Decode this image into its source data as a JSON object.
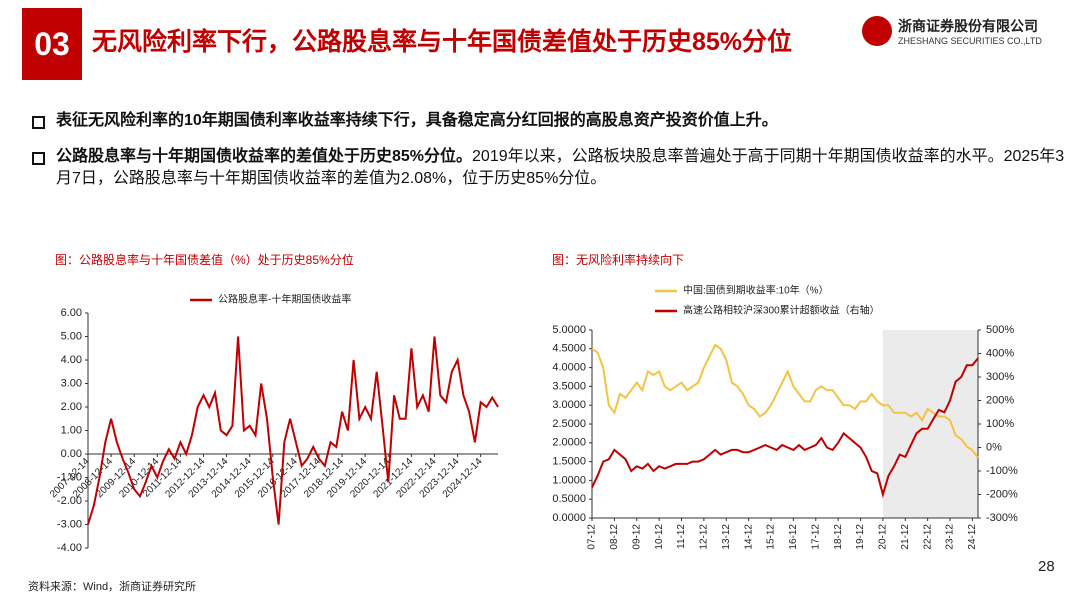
{
  "header": {
    "number": "03",
    "title": "无风险利率下行，公路股息率与十年国债差值处于历史85%分位"
  },
  "logo": {
    "name_cn": "浙商证券股份有限公司",
    "name_en": "ZHESHANG SECURITIES CO.,LTD"
  },
  "bullets": [
    {
      "bold": "表征无风险利率的10年期国债利率收益率持续下行，具备稳定高分红回报的高股息资产投资价值上升。"
    },
    {
      "bold": "公路股息率与十年期国债收益率的差值处于历史85%分位。",
      "text": "2019年以来，公路板块股息率普遍处于高于同期十年期国债收益率的水平。2025年3月7日，公路股息率与十年期国债收益率的差值为2.08%，位于历史85%分位。"
    }
  ],
  "chart_data": [
    {
      "type": "line",
      "title": "图：公路股息率与十年国债差值（%）处于历史85%分位",
      "legend": "top",
      "categories": [
        "2007-12-14",
        null,
        null,
        null,
        "2008-12-14",
        null,
        null,
        null,
        "2009-12-14",
        null,
        null,
        null,
        "2010-12-14",
        null,
        null,
        null,
        "2011-12-14",
        null,
        null,
        null,
        "2012-12-14",
        null,
        null,
        null,
        "2013-12-14",
        null,
        null,
        null,
        "2014-12-14",
        null,
        null,
        null,
        "2015-12-14",
        null,
        null,
        null,
        "2016-12-14",
        null,
        null,
        null,
        "2017-12-14",
        null,
        null,
        null,
        "2018-12-14",
        null,
        null,
        null,
        "2019-12-14",
        null,
        null,
        null,
        "2020-12-14",
        null,
        null,
        null,
        "2021-12-14",
        null,
        null,
        null,
        "2022-12-14",
        null,
        null,
        null,
        "2023-12-14",
        null,
        null,
        null,
        "2024-12-14",
        null,
        null,
        null
      ],
      "series": [
        {
          "name": "公路股息率-十年期国债收益率",
          "color": "#c00000",
          "values": [
            -3.0,
            -2.2,
            -1.0,
            0.5,
            1.5,
            0.5,
            -0.2,
            -0.8,
            -1.5,
            -1.8,
            -1.2,
            -0.5,
            -1.0,
            -0.3,
            0.2,
            -0.2,
            0.5,
            0.0,
            0.8,
            2.0,
            2.5,
            2.0,
            2.6,
            1.0,
            0.8,
            1.2,
            5.0,
            1.0,
            1.2,
            0.8,
            3.0,
            1.5,
            -1.0,
            -3.0,
            0.5,
            1.5,
            0.5,
            -0.5,
            -0.2,
            0.3,
            -0.2,
            -0.5,
            0.5,
            0.3,
            1.8,
            1.0,
            4.0,
            1.5,
            2.0,
            1.5,
            3.5,
            1.2,
            -1.2,
            2.5,
            1.5,
            1.5,
            4.5,
            2.0,
            2.5,
            1.8,
            5.0,
            2.5,
            2.2,
            3.5,
            4.0,
            2.5,
            1.8,
            0.5,
            2.2,
            2.0,
            2.4,
            2.0
          ]
        }
      ],
      "ylim": [
        -4,
        6
      ],
      "yticks": [
        {
          "value": 6,
          "label": "6.00"
        },
        {
          "value": 5,
          "label": "5.00"
        },
        {
          "value": 4,
          "label": "4.00"
        },
        {
          "value": 3,
          "label": "3.00"
        },
        {
          "value": 2,
          "label": "2.00"
        },
        {
          "value": 1,
          "label": "1.00"
        },
        {
          "value": 0,
          "label": "0.00"
        },
        {
          "value": -1,
          "label": "-1.00"
        },
        {
          "value": -2,
          "label": "-2.00"
        },
        {
          "value": -3,
          "label": "-3.00"
        },
        {
          "value": -4,
          "label": "-4.00"
        }
      ]
    },
    {
      "type": "line",
      "title": "图：无风险利率持续向下",
      "legend": "top",
      "shade_from": "20-12",
      "shade_color": "#ebebeb",
      "categories": [
        "07-12",
        null,
        null,
        null,
        "08-12",
        null,
        null,
        null,
        "09-12",
        null,
        null,
        null,
        "10-12",
        null,
        null,
        null,
        "11-12",
        null,
        null,
        null,
        "12-12",
        null,
        null,
        null,
        "13-12",
        null,
        null,
        null,
        "14-12",
        null,
        null,
        null,
        "15-12",
        null,
        null,
        null,
        "16-12",
        null,
        null,
        null,
        "17-12",
        null,
        null,
        null,
        "18-12",
        null,
        null,
        null,
        "19-12",
        null,
        null,
        null,
        "20-12",
        null,
        null,
        null,
        "21-12",
        null,
        null,
        null,
        "22-12",
        null,
        null,
        null,
        "23-12",
        null,
        null,
        null,
        "24-12",
        null
      ],
      "series": [
        {
          "name": "中国:国债到期收益率:10年（%）",
          "color": "#f5c342",
          "values": [
            4.5,
            4.4,
            4.0,
            3.0,
            2.8,
            3.3,
            3.2,
            3.4,
            3.6,
            3.4,
            3.9,
            3.8,
            3.9,
            3.5,
            3.4,
            3.5,
            3.6,
            3.4,
            3.5,
            3.6,
            4.0,
            4.3,
            4.6,
            4.5,
            4.2,
            3.6,
            3.5,
            3.3,
            3.0,
            2.9,
            2.7,
            2.8,
            3.0,
            3.3,
            3.6,
            3.9,
            3.5,
            3.3,
            3.1,
            3.1,
            3.4,
            3.5,
            3.4,
            3.4,
            3.2,
            3.0,
            3.0,
            2.9,
            3.1,
            3.1,
            3.3,
            3.1,
            3.0,
            3.0,
            2.8,
            2.8,
            2.8,
            2.7,
            2.8,
            2.6,
            2.9,
            2.8,
            2.7,
            2.7,
            2.6,
            2.2,
            2.1,
            1.9,
            1.8,
            1.6
          ]
        },
        {
          "name": "高速公路相较沪深300累计超额收益（右轴）",
          "color": "#c00000",
          "axis": "y2",
          "values": [
            -170,
            -120,
            -60,
            -50,
            -10,
            -30,
            -50,
            -100,
            -80,
            -90,
            -70,
            -100,
            -80,
            -90,
            -80,
            -70,
            -70,
            -70,
            -60,
            -60,
            -50,
            -30,
            -10,
            -30,
            -20,
            -10,
            -10,
            -20,
            -20,
            -10,
            0,
            10,
            0,
            -10,
            10,
            0,
            -10,
            10,
            -10,
            0,
            10,
            40,
            0,
            -10,
            20,
            60,
            40,
            20,
            0,
            -40,
            -100,
            -110,
            -200,
            -120,
            -80,
            -30,
            -40,
            10,
            60,
            80,
            80,
            120,
            160,
            150,
            200,
            280,
            300,
            350,
            350,
            380
          ]
        }
      ],
      "ylim": [
        0,
        5
      ],
      "yticks": [
        {
          "value": 0,
          "label": "0.0000"
        },
        {
          "value": 0.5,
          "label": "0.5000"
        },
        {
          "value": 1,
          "label": "1.0000"
        },
        {
          "value": 1.5,
          "label": "1.5000"
        },
        {
          "value": 2,
          "label": "2.0000"
        },
        {
          "value": 2.5,
          "label": "2.5000"
        },
        {
          "value": 3,
          "label": "3.0000"
        },
        {
          "value": 3.5,
          "label": "3.5000"
        },
        {
          "value": 4,
          "label": "4.0000"
        },
        {
          "value": 4.5,
          "label": "4.5000"
        },
        {
          "value": 5,
          "label": "5.0000"
        }
      ],
      "y2lim": [
        -300,
        500
      ],
      "y2ticks": [
        {
          "value": -300,
          "label": "-300%"
        },
        {
          "value": -200,
          "label": "-200%"
        },
        {
          "value": -100,
          "label": "-100%"
        },
        {
          "value": 0,
          "label": "0%"
        },
        {
          "value": 100,
          "label": "100%"
        },
        {
          "value": 200,
          "label": "200%"
        },
        {
          "value": 300,
          "label": "300%"
        },
        {
          "value": 400,
          "label": "400%"
        },
        {
          "value": 500,
          "label": "500%"
        }
      ]
    }
  ],
  "source": "资料来源：Wind，浙商证券研究所",
  "page_number": "28"
}
